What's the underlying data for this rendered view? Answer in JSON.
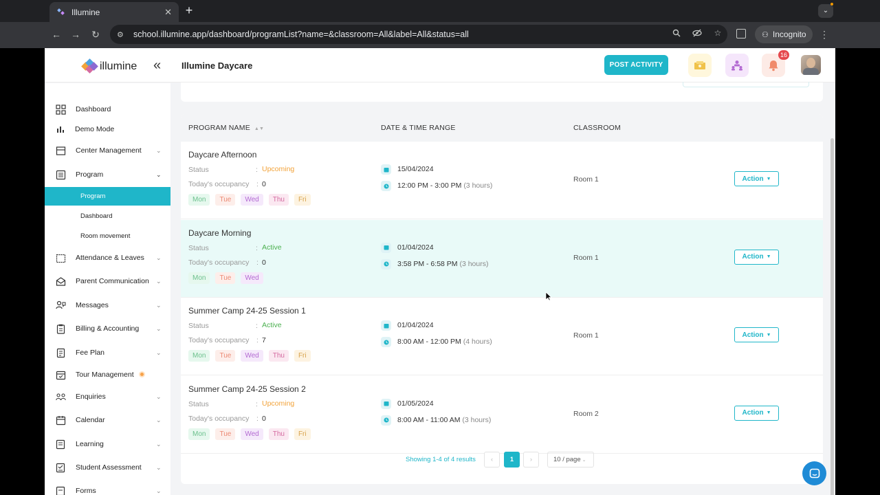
{
  "browser": {
    "tab_title": "Illumine",
    "tab_close": "✕",
    "new_tab": "+",
    "url": "school.illumine.app/dashboard/programList?name=&classroom=All&label=All&status=all",
    "incognito_label": "Incognito"
  },
  "header": {
    "logo_text": "illumine",
    "school_name": "Illumine Daycare",
    "post_activity_label": "POST ACTIVITY",
    "notification_count": "16"
  },
  "sidebar": {
    "items": [
      {
        "label": "Dashboard",
        "icon": "grid-icon"
      },
      {
        "label": "Demo Mode",
        "icon": "bar-chart-icon"
      },
      {
        "label": "Center Management",
        "icon": "building-icon"
      },
      {
        "label": "Program",
        "icon": "list-icon"
      },
      {
        "label": "Attendance & Leaves",
        "icon": "calendar-check-icon"
      },
      {
        "label": "Parent Communication",
        "icon": "envelope-icon"
      },
      {
        "label": "Messages",
        "icon": "chat-icon"
      },
      {
        "label": "Billing & Accounting",
        "icon": "clipboard-icon"
      },
      {
        "label": "Fee Plan",
        "icon": "document-icon"
      },
      {
        "label": "Tour Management",
        "icon": "calendar-icon"
      },
      {
        "label": "Enquiries",
        "icon": "users-icon"
      },
      {
        "label": "Calendar",
        "icon": "calendar-icon"
      },
      {
        "label": "Learning",
        "icon": "book-icon"
      },
      {
        "label": "Student Assessment",
        "icon": "assessment-icon"
      },
      {
        "label": "Forms",
        "icon": "form-icon"
      }
    ],
    "program_sub": [
      "Program",
      "Dashboard",
      "Room movement"
    ]
  },
  "table": {
    "headers": {
      "program_name": "PROGRAM NAME",
      "date_time": "DATE & TIME RANGE",
      "classroom": "CLASSROOM"
    },
    "status_label": "Status",
    "occupancy_label": "Today's occupancy",
    "colon": ":",
    "action_label": "Action",
    "rows": [
      {
        "name": "Daycare Afternoon",
        "status": "Upcoming",
        "occupancy": "0",
        "days": [
          "Mon",
          "Tue",
          "Wed",
          "Thu",
          "Fri"
        ],
        "date": "15/04/2024",
        "time": "12:00 PM - 3:00 PM",
        "duration": "(3 hours)",
        "room": "Room 1"
      },
      {
        "name": "Daycare Morning",
        "status": "Active",
        "occupancy": "0",
        "days": [
          "Mon",
          "Tue",
          "Wed"
        ],
        "date": "01/04/2024",
        "time": "3:58 PM - 6:58 PM",
        "duration": "(3 hours)",
        "room": "Room 1"
      },
      {
        "name": "Summer Camp 24-25 Session 1",
        "status": "Active",
        "occupancy": "7",
        "days": [
          "Mon",
          "Tue",
          "Wed",
          "Thu",
          "Fri"
        ],
        "date": "01/04/2024",
        "time": "8:00 AM - 12:00 PM",
        "duration": "(4 hours)",
        "room": "Room 1"
      },
      {
        "name": "Summer Camp 24-25 Session 2",
        "status": "Upcoming",
        "occupancy": "0",
        "days": [
          "Mon",
          "Tue",
          "Wed",
          "Thu",
          "Fri"
        ],
        "date": "01/05/2024",
        "time": "8:00 AM - 11:00 AM",
        "duration": "(3 hours)",
        "room": "Room 2"
      }
    ]
  },
  "pagination": {
    "summary": "Showing 1-4 of 4 results",
    "current_page": "1",
    "page_size": "10 / page"
  },
  "colors": {
    "accent": "#1fb6c9",
    "upcoming": "#f2a33a",
    "active": "#4cb050",
    "highlight_row": "#e9faf8"
  }
}
